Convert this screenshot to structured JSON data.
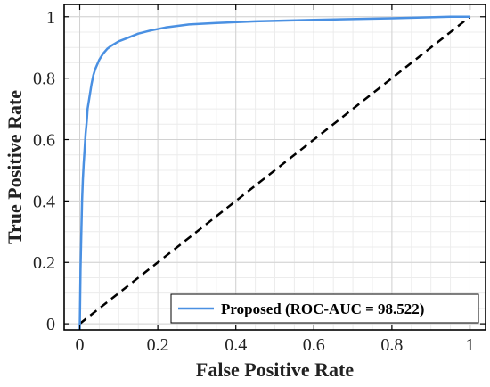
{
  "chart_data": {
    "type": "line",
    "xlabel": "False Positive Rate",
    "ylabel": "True Positive Rate",
    "xlim": [
      -0.04,
      1.04
    ],
    "ylim": [
      -0.02,
      1.04
    ],
    "xticks": [
      0,
      0.2,
      0.4,
      0.6,
      0.8,
      1
    ],
    "xtick_labels": [
      "0",
      "0.2",
      "0.4",
      "0.6",
      "0.8",
      "1"
    ],
    "yticks": [
      0,
      0.2,
      0.4,
      0.6,
      0.8,
      1
    ],
    "ytick_labels": [
      "0",
      "0.2",
      "0.4",
      "0.6",
      "0.8",
      "1"
    ],
    "grid": true,
    "minor_grid": true,
    "legend_position": "bottom-right",
    "series": [
      {
        "name": "Proposed (ROC-AUC = 98.522)",
        "color": "#4a90e2",
        "style": "solid",
        "x": [
          0,
          0.002,
          0.004,
          0.006,
          0.008,
          0.01,
          0.012,
          0.015,
          0.018,
          0.02,
          0.025,
          0.03,
          0.035,
          0.04,
          0.05,
          0.06,
          0.07,
          0.08,
          0.1,
          0.12,
          0.15,
          0.18,
          0.22,
          0.28,
          0.35,
          0.45,
          0.6,
          0.8,
          0.95,
          1.0
        ],
        "y": [
          -0.02,
          0.18,
          0.3,
          0.4,
          0.47,
          0.52,
          0.56,
          0.62,
          0.66,
          0.7,
          0.74,
          0.78,
          0.81,
          0.83,
          0.86,
          0.88,
          0.895,
          0.905,
          0.92,
          0.93,
          0.945,
          0.955,
          0.965,
          0.975,
          0.98,
          0.985,
          0.99,
          0.995,
          1.0,
          1.0
        ]
      },
      {
        "name": "",
        "color": "#000000",
        "style": "dashed",
        "x": [
          0,
          1
        ],
        "y": [
          0,
          1
        ]
      }
    ]
  }
}
